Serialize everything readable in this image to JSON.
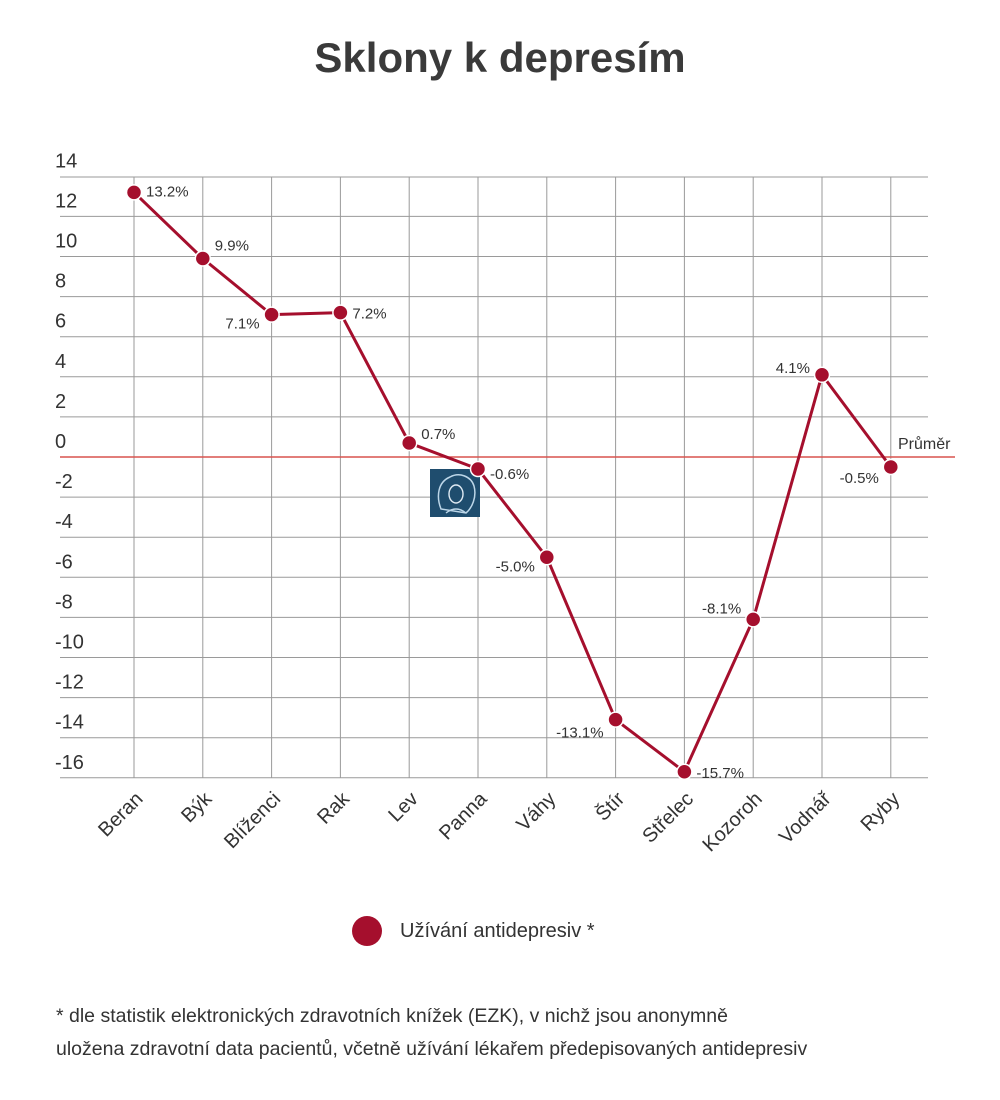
{
  "title": "Sklony k depresím",
  "legend": {
    "label": "Užívání antidepresiv *",
    "position": "bottom-center"
  },
  "footnote": {
    "line1": "* dle statistik elektronických zdravotních knížek (EZK), v nichž jsou anonymně",
    "line2": "uložena zdravotní data pacientů, včetně užívání lékařem předepisovaných antidepresiv"
  },
  "colors": {
    "series": "#a50f2d",
    "average_line": "#d9534f",
    "grid": "#9a9a9a"
  },
  "chart_data": {
    "type": "line",
    "title": "Sklony k depresím",
    "categories": [
      "Beran",
      "Býk",
      "Blíženci",
      "Rak",
      "Lev",
      "Panna",
      "Váhy",
      "Štír",
      "Střelec",
      "Kozoroh",
      "Vodnář",
      "Ryby"
    ],
    "series": [
      {
        "name": "Užívání antidepresiv *",
        "values": [
          13.2,
          9.9,
          7.1,
          7.2,
          0.7,
          -0.6,
          -5.0,
          -13.1,
          -15.7,
          -8.1,
          4.1,
          -0.5
        ],
        "labels": [
          "13.2%",
          "9.9%",
          "7.1%",
          "7.2%",
          "0.7%",
          "-0.6%",
          "-5.0%",
          "-13.1%",
          "-15.7%",
          "-8.1%",
          "4.1%",
          "-0.5%"
        ]
      }
    ],
    "yticks": [
      14,
      12,
      10,
      8,
      6,
      4,
      2,
      0,
      -2,
      -4,
      -6,
      -8,
      -10,
      -12,
      -14,
      -16
    ],
    "ylim": [
      -16,
      14
    ],
    "grid": true,
    "reference_line": {
      "value": 0,
      "label": "Průměr"
    },
    "annotation_icon": "virgo-woman-portrait-icon"
  }
}
